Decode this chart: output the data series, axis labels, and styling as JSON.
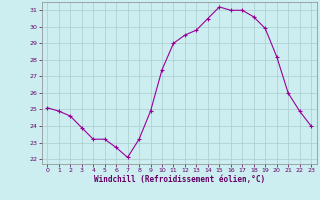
{
  "x": [
    0,
    1,
    2,
    3,
    4,
    5,
    6,
    7,
    8,
    9,
    10,
    11,
    12,
    13,
    14,
    15,
    16,
    17,
    18,
    19,
    20,
    21,
    22,
    23
  ],
  "y": [
    25.1,
    24.9,
    24.6,
    23.9,
    23.2,
    23.2,
    22.7,
    22.1,
    23.2,
    24.9,
    27.4,
    29.0,
    29.5,
    29.8,
    30.5,
    31.2,
    31.0,
    31.0,
    30.6,
    29.9,
    28.2,
    26.0,
    24.9,
    24.0
  ],
  "line_color": "#990099",
  "marker": "+",
  "bg_color": "#cceef0",
  "grid_color": "#aacccc",
  "xlabel": "Windchill (Refroidissement éolien,°C)",
  "xlabel_color": "#660066",
  "tick_color": "#660066",
  "ylim": [
    21.7,
    31.5
  ],
  "yticks": [
    22,
    23,
    24,
    25,
    26,
    27,
    28,
    29,
    30,
    31
  ],
  "xlim": [
    -0.5,
    23.5
  ],
  "xticks": [
    0,
    1,
    2,
    3,
    4,
    5,
    6,
    7,
    8,
    9,
    10,
    11,
    12,
    13,
    14,
    15,
    16,
    17,
    18,
    19,
    20,
    21,
    22,
    23
  ]
}
